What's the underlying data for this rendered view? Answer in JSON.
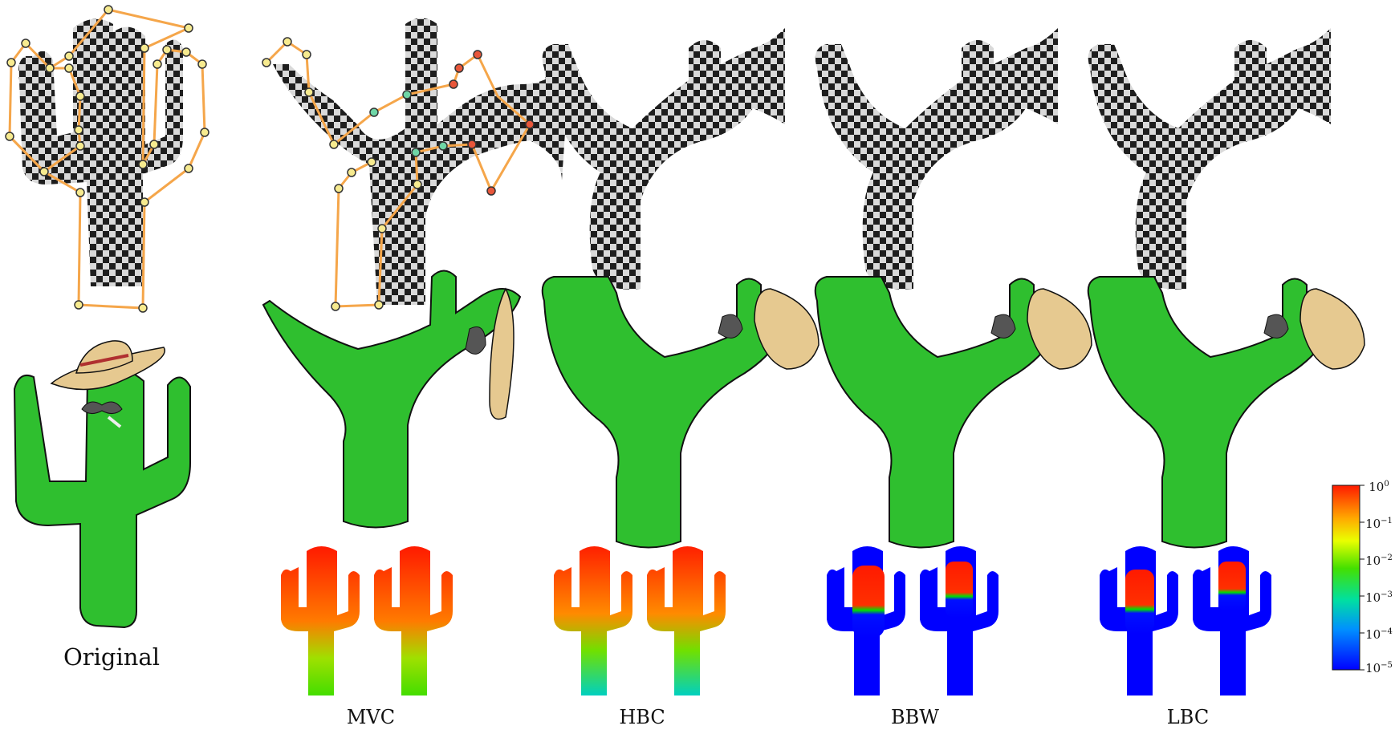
{
  "labels": {
    "original": "Original",
    "methods": [
      "MVC",
      "HBC",
      "BBW",
      "LBC"
    ]
  },
  "colorbar": {
    "ticks": [
      {
        "base": "10",
        "exp": "0"
      },
      {
        "base": "10",
        "exp": "−1"
      },
      {
        "base": "10",
        "exp": "−2"
      },
      {
        "base": "10",
        "exp": "−3"
      },
      {
        "base": "10",
        "exp": "−4"
      },
      {
        "base": "10",
        "exp": "−5"
      }
    ],
    "scale": "log"
  },
  "colors": {
    "cage": "#f5a64a",
    "vertex": "#f7eb8f",
    "handle_teal": "#6fd6a6",
    "handle_red": "#e8563a",
    "cactus": "#2fbf2f",
    "hat": "#e6c990",
    "checker_dark": "#222222",
    "checker_light": "#d8d8d8",
    "heat_high": "#ff1a00",
    "heat_low": "#0000ff"
  }
}
